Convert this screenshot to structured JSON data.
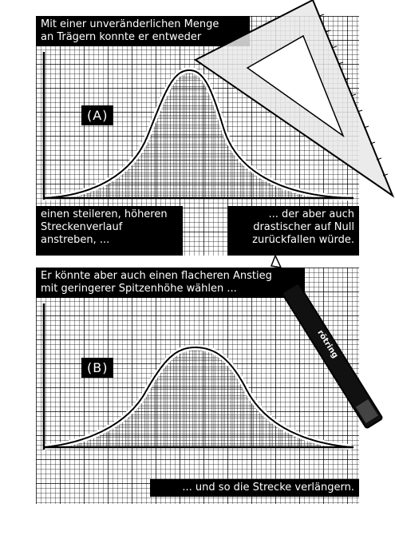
{
  "panel_a": {
    "caption_top": "Mit einer unveränderlichen Menge\nan Trägern konnte er entweder",
    "label": "(A)",
    "caption_left": "einen steileren, höheren\nStreckenverlauf\nanstreben, ...",
    "caption_right": "... der aber auch\ndrastischer auf Null\nzurückfallen würde."
  },
  "panel_b": {
    "caption_top": "Er könnte aber auch einen flacheren Anstieg\nmit geringerer Spitzenhöhe wählen ...",
    "label": "(B)",
    "caption_bottom": "... und so die Strecke verlängern."
  },
  "pen": {
    "brand": "rōtring"
  },
  "colors": {
    "ink": "#000000",
    "paper": "#ffffff",
    "triangle": "#e8e8e8"
  }
}
